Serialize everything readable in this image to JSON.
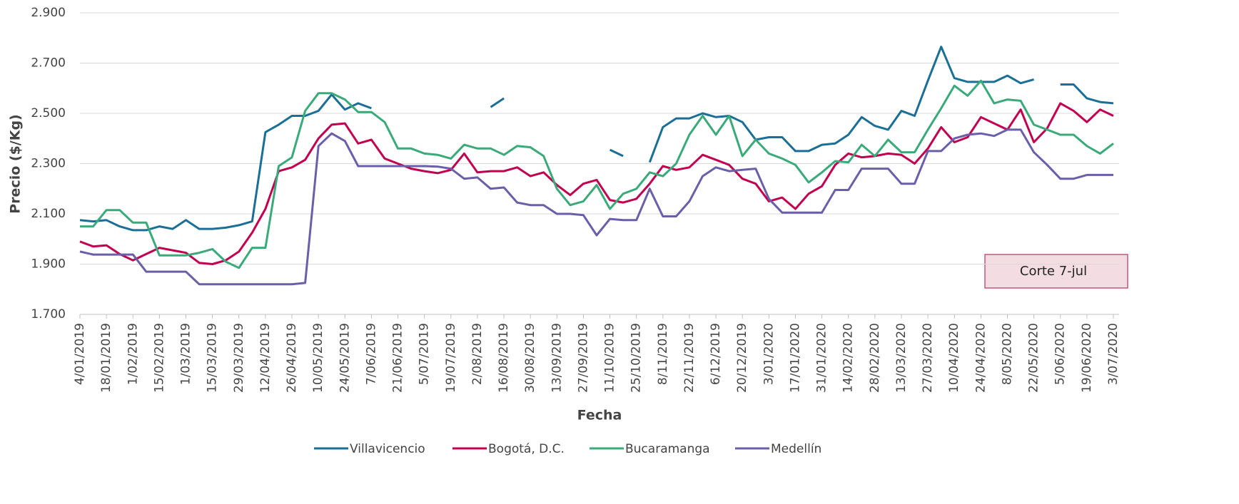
{
  "chart_data": {
    "type": "line",
    "y_label": "Precio ($/Kg)",
    "x_label": "Fecha",
    "annotation": "Corte 7-jul",
    "categories": [
      "4/01/2019",
      null,
      "18/01/2019",
      null,
      "1/02/2019",
      null,
      "15/02/2019",
      null,
      "1/03/2019",
      null,
      "15/03/2019",
      null,
      "29/03/2019",
      null,
      "12/04/2019",
      null,
      "26/04/2019",
      null,
      "10/05/2019",
      null,
      "24/05/2019",
      null,
      "7/06/2019",
      null,
      "21/06/2019",
      null,
      "5/07/2019",
      null,
      "19/07/2019",
      null,
      "2/08/2019",
      null,
      "16/08/2019",
      null,
      "30/08/2019",
      null,
      "13/09/2019",
      null,
      "27/09/2019",
      null,
      "11/10/2019",
      null,
      "25/10/2019",
      null,
      "8/11/2019",
      null,
      "22/11/2019",
      null,
      "6/12/2019",
      null,
      "20/12/2019",
      null,
      "3/01/2020",
      null,
      "17/01/2020",
      null,
      "31/01/2020",
      null,
      "14/02/2020",
      null,
      "28/02/2020",
      null,
      "13/03/2020",
      null,
      "27/03/2020",
      null,
      "10/04/2020",
      null,
      "24/04/2020",
      null,
      "8/05/2020",
      null,
      "22/05/2020",
      null,
      "5/06/2020",
      null,
      "19/06/2020",
      null,
      "3/07/2020"
    ],
    "series": [
      {
        "name": "Villavicencio",
        "color": "#1b6f96",
        "values": [
          2075,
          2070,
          2075,
          2050,
          2035,
          2035,
          2050,
          2040,
          2075,
          2040,
          2040,
          2045,
          2055,
          2070,
          2425,
          2455,
          2490,
          2490,
          2510,
          2575,
          2515,
          2540,
          2520,
          null,
          null,
          null,
          null,
          null,
          null,
          null,
          null,
          2525,
          2560,
          null,
          null,
          null,
          null,
          null,
          null,
          null,
          2355,
          2330,
          null,
          2305,
          2445,
          2480,
          2480,
          2500,
          2485,
          2490,
          2465,
          2395,
          2405,
          2405,
          2350,
          2350,
          2375,
          2380,
          2415,
          2485,
          2450,
          2435,
          2510,
          2490,
          2630,
          2765,
          2640,
          2625,
          2625,
          2625,
          2650,
          2620,
          2635,
          null,
          2615,
          2615,
          2560,
          2545,
          2540
        ]
      },
      {
        "name": "Bogotá, D.C.",
        "color": "#c1004f",
        "values": [
          1990,
          1970,
          1975,
          1940,
          1915,
          1940,
          1965,
          1955,
          1945,
          1905,
          1900,
          1915,
          1950,
          2025,
          2120,
          2270,
          2285,
          2315,
          2400,
          2455,
          2460,
          2380,
          2395,
          2320,
          2300,
          2280,
          2270,
          2262,
          2275,
          2340,
          2265,
          2270,
          2270,
          2285,
          2250,
          2265,
          2215,
          2175,
          2220,
          2235,
          2155,
          2145,
          2160,
          2220,
          2290,
          2275,
          2285,
          2335,
          2315,
          2295,
          2240,
          2220,
          2150,
          2165,
          2120,
          2180,
          2210,
          2295,
          2340,
          2325,
          2330,
          2340,
          2335,
          2300,
          2360,
          2445,
          2385,
          2405,
          2485,
          2460,
          2435,
          2515,
          2385,
          2440,
          2540,
          2510,
          2465,
          2515,
          2490
        ]
      },
      {
        "name": "Bucaramanga",
        "color": "#3aaa7a",
        "values": [
          2050,
          2050,
          2115,
          2115,
          2065,
          2065,
          1935,
          1935,
          1935,
          1945,
          1960,
          1910,
          1885,
          1965,
          1965,
          2290,
          2325,
          2510,
          2580,
          2580,
          2555,
          2505,
          2505,
          2465,
          2360,
          2360,
          2340,
          2335,
          2320,
          2375,
          2360,
          2360,
          2335,
          2370,
          2365,
          2330,
          2200,
          2135,
          2150,
          2215,
          2120,
          2180,
          2200,
          2265,
          2250,
          2300,
          2415,
          2490,
          2415,
          2490,
          2330,
          2395,
          2340,
          2320,
          2295,
          2225,
          2265,
          2310,
          2305,
          2375,
          2330,
          2395,
          2345,
          2345,
          2435,
          2520,
          2610,
          2570,
          2630,
          2540,
          2555,
          2550,
          2455,
          2435,
          2415,
          2415,
          2370,
          2340,
          2380
        ]
      },
      {
        "name": "Medellín",
        "color": "#6a5fa8",
        "values": [
          1950,
          1938,
          1938,
          1938,
          1938,
          1870,
          1870,
          1870,
          1870,
          1820,
          1820,
          1820,
          1820,
          1820,
          1820,
          1820,
          1820,
          1825,
          2370,
          2420,
          2390,
          2290,
          2290,
          2290,
          2290,
          2290,
          2290,
          2288,
          2280,
          2240,
          2245,
          2200,
          2205,
          2145,
          2135,
          2135,
          2100,
          2100,
          2095,
          2015,
          2080,
          2075,
          2075,
          2200,
          2090,
          2090,
          2150,
          2250,
          2285,
          2270,
          2275,
          2280,
          2160,
          2105,
          2105,
          2105,
          2105,
          2195,
          2195,
          2280,
          2280,
          2280,
          2220,
          2220,
          2350,
          2350,
          2400,
          2415,
          2420,
          2410,
          2435,
          2435,
          2345,
          2295,
          2240,
          2240,
          2255,
          2255,
          2255
        ]
      }
    ],
    "ylim": [
      1700,
      2900
    ],
    "yticks": [
      {
        "value": 1700,
        "label": "1.700"
      },
      {
        "value": 1900,
        "label": "1.900"
      },
      {
        "value": 2100,
        "label": "2.100"
      },
      {
        "value": 2300,
        "label": "2.300"
      },
      {
        "value": 2500,
        "label": "2.500"
      },
      {
        "value": 2700,
        "label": "2.700"
      },
      {
        "value": 2900,
        "label": "2.900"
      }
    ],
    "grid": true,
    "legend": "bottom"
  }
}
